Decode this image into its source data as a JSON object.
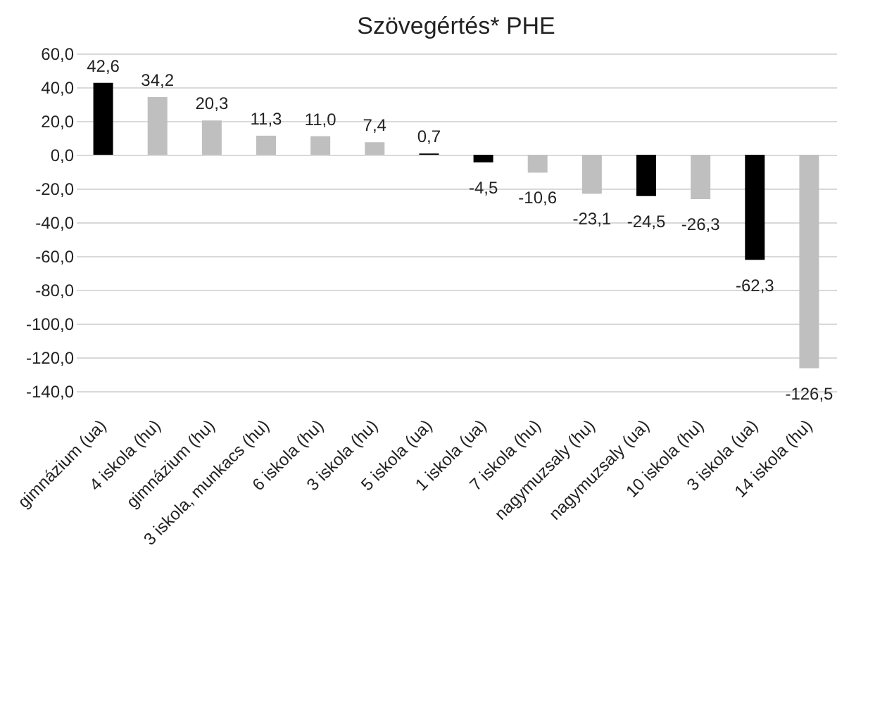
{
  "chart_data": {
    "type": "bar",
    "title": "Szövegértés* PHE",
    "categories": [
      "gimnázium (ua)",
      "4 iskola (hu)",
      "gimnázium (hu)",
      "3 iskola, munkacs (hu)",
      "6 iskola (hu)",
      "3 iskola (hu)",
      "5 iskola (ua)",
      "1 iskola (ua)",
      "7 iskola (hu)",
      "nagymuzsaly (hu)",
      "nagymuzsaly (ua)",
      "10 iskola (hu)",
      "3 iskola (ua)",
      "14 iskola (hu)"
    ],
    "values": [
      42.6,
      34.2,
      20.3,
      11.3,
      11.0,
      7.4,
      0.7,
      -4.5,
      -10.6,
      -23.1,
      -24.5,
      -26.3,
      -62.3,
      -126.5
    ],
    "value_labels": [
      "42,6",
      "34,2",
      "20,3",
      "11,3",
      "11,0",
      "7,4",
      "0,7",
      "-4,5",
      "-10,6",
      "-23,1",
      "-24,5",
      "-26,3",
      "-62,3",
      "-126,5"
    ],
    "colors": [
      "#000000",
      "#bfbfbf",
      "#bfbfbf",
      "#bfbfbf",
      "#bfbfbf",
      "#bfbfbf",
      "#000000",
      "#000000",
      "#bfbfbf",
      "#bfbfbf",
      "#000000",
      "#bfbfbf",
      "#000000",
      "#bfbfbf"
    ],
    "ylim": [
      -140,
      60
    ],
    "yticks": [
      {
        "value": -140,
        "label": "-140,0"
      },
      {
        "value": -120,
        "label": "-120,0"
      },
      {
        "value": -100,
        "label": "-100,0"
      },
      {
        "value": -80,
        "label": "-80,0"
      },
      {
        "value": -60,
        "label": "-60,0"
      },
      {
        "value": -40,
        "label": "-40,0"
      },
      {
        "value": -20,
        "label": "-20,0"
      },
      {
        "value": 0,
        "label": "0,0"
      },
      {
        "value": 20,
        "label": "20,0"
      },
      {
        "value": 40,
        "label": "40,0"
      },
      {
        "value": 60,
        "label": "60,0"
      }
    ],
    "grid": "y"
  }
}
